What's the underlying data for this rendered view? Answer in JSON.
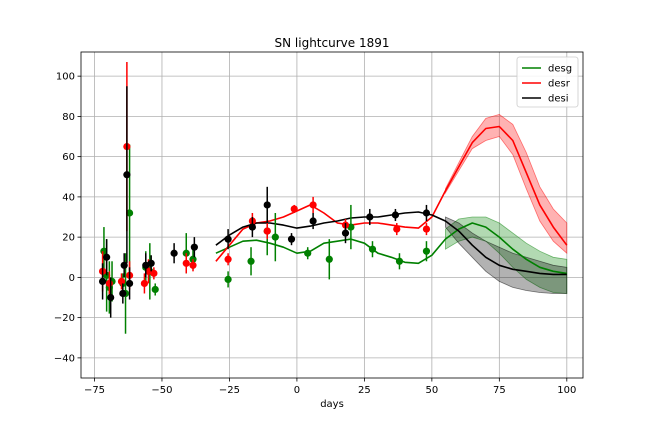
{
  "chart_data": {
    "type": "line",
    "title": "SN lightcurve 1891",
    "xlabel": "days",
    "ylabel": "",
    "xlim": [
      -80,
      106
    ],
    "ylim": [
      -50,
      112
    ],
    "xticks": [
      -75,
      -50,
      -25,
      0,
      25,
      50,
      75,
      100
    ],
    "yticks": [
      -40,
      -20,
      0,
      20,
      40,
      60,
      80,
      100
    ],
    "xtick_labels": [
      "−75",
      "−50",
      "−25",
      "0",
      "25",
      "50",
      "75",
      "100"
    ],
    "ytick_labels": [
      "−40",
      "−20",
      "0",
      "20",
      "40",
      "60",
      "80",
      "100"
    ],
    "grid": true,
    "legend_position": "top-right",
    "series": [
      {
        "name": "desg",
        "color": "#008000",
        "model_x": [
          -30,
          -25,
          -20,
          -15,
          -10,
          -5,
          0,
          5,
          10,
          15,
          20,
          25,
          30,
          35,
          40,
          45,
          50,
          55,
          60,
          65,
          70,
          75,
          80,
          85,
          90,
          95,
          100
        ],
        "model_y": [
          12,
          15,
          18,
          18.5,
          17,
          15,
          12,
          13,
          17,
          18,
          19,
          17,
          12,
          10,
          7.5,
          7,
          11,
          19,
          24,
          27,
          25,
          20,
          14,
          9,
          5,
          3,
          2
        ],
        "band_upper": [
          null,
          null,
          null,
          null,
          null,
          null,
          null,
          null,
          null,
          null,
          null,
          null,
          null,
          null,
          null,
          null,
          null,
          24,
          29,
          30,
          30,
          27,
          22,
          17,
          13,
          10,
          9
        ],
        "band_lower": [
          null,
          null,
          null,
          null,
          null,
          null,
          null,
          null,
          null,
          null,
          null,
          null,
          null,
          null,
          null,
          null,
          null,
          14,
          18,
          20,
          18,
          12,
          5,
          -1,
          -5,
          -7.5,
          -8
        ],
        "points": [
          {
            "x": -71.5,
            "y": 13,
            "err": 12
          },
          {
            "x": -70.5,
            "y": 1,
            "err": 18
          },
          {
            "x": -69.5,
            "y": -5,
            "err": 13
          },
          {
            "x": -68.5,
            "y": -2,
            "err": 10
          },
          {
            "x": -64.5,
            "y": -3,
            "err": 5
          },
          {
            "x": -63.5,
            "y": -8,
            "err": 20
          },
          {
            "x": -62,
            "y": 32,
            "err": 34
          },
          {
            "x": -56,
            "y": 5,
            "err": 8
          },
          {
            "x": -54.5,
            "y": 3,
            "err": 14
          },
          {
            "x": -52.5,
            "y": -6,
            "err": 3
          },
          {
            "x": -41,
            "y": 12,
            "err": 10
          },
          {
            "x": -38.5,
            "y": 9,
            "err": 5
          },
          {
            "x": -25.5,
            "y": -1,
            "err": 4
          },
          {
            "x": -17,
            "y": 8,
            "err": 7
          },
          {
            "x": -11,
            "y": 23,
            "err": 12
          },
          {
            "x": -8,
            "y": 20,
            "err": 12
          },
          {
            "x": 4,
            "y": 12,
            "err": 3
          },
          {
            "x": 12,
            "y": 9,
            "err": 10
          },
          {
            "x": 20,
            "y": 25,
            "err": 11
          },
          {
            "x": 28,
            "y": 14,
            "err": 4
          },
          {
            "x": 38,
            "y": 8,
            "err": 4
          },
          {
            "x": 48,
            "y": 13,
            "err": 5
          }
        ]
      },
      {
        "name": "desr",
        "color": "#ff0000",
        "model_x": [
          -30,
          -25,
          -20,
          -15,
          -10,
          -5,
          0,
          5,
          10,
          15,
          20,
          25,
          30,
          35,
          40,
          45,
          50,
          55,
          60,
          65,
          70,
          75,
          80,
          85,
          90,
          95,
          100
        ],
        "model_y": [
          8,
          16,
          24,
          27,
          28,
          30,
          33,
          36,
          32,
          27,
          26,
          27,
          27,
          26,
          25,
          24.5,
          30,
          43,
          55,
          67,
          74,
          75,
          68,
          52,
          36,
          25,
          16
        ],
        "band_upper": [
          null,
          null,
          null,
          null,
          null,
          null,
          null,
          null,
          null,
          null,
          null,
          null,
          null,
          null,
          null,
          null,
          null,
          44,
          57,
          70,
          79,
          81,
          76,
          62,
          45,
          34,
          27
        ],
        "band_lower": [
          null,
          null,
          null,
          null,
          null,
          null,
          null,
          null,
          null,
          null,
          null,
          null,
          null,
          null,
          null,
          null,
          null,
          42,
          53,
          64,
          68,
          70,
          61,
          44,
          28,
          18,
          12
        ],
        "points": [
          {
            "x": -72,
            "y": 3,
            "err": 10
          },
          {
            "x": -69.5,
            "y": -3,
            "err": 6
          },
          {
            "x": -65,
            "y": -2,
            "err": 4
          },
          {
            "x": -63,
            "y": 65,
            "err": 42
          },
          {
            "x": -62,
            "y": 1,
            "err": 7
          },
          {
            "x": -56.5,
            "y": -3,
            "err": 5
          },
          {
            "x": -55,
            "y": 3,
            "err": 6
          },
          {
            "x": -53,
            "y": 2,
            "err": 3
          },
          {
            "x": -41,
            "y": 7,
            "err": 5
          },
          {
            "x": -38.5,
            "y": 6,
            "err": 3
          },
          {
            "x": -25.5,
            "y": 9,
            "err": 3
          },
          {
            "x": -16.5,
            "y": 28,
            "err": 4
          },
          {
            "x": -11,
            "y": 23,
            "err": 4
          },
          {
            "x": -1,
            "y": 34,
            "err": 2
          },
          {
            "x": 6,
            "y": 36,
            "err": 4
          },
          {
            "x": 18,
            "y": 26,
            "err": 3
          },
          {
            "x": 37,
            "y": 24,
            "err": 3
          },
          {
            "x": 48,
            "y": 24,
            "err": 3
          }
        ]
      },
      {
        "name": "desi",
        "color": "#000000",
        "model_x": [
          -30,
          -25,
          -20,
          -15,
          -10,
          -5,
          0,
          5,
          10,
          15,
          20,
          25,
          30,
          35,
          40,
          45,
          50,
          55,
          60,
          65,
          70,
          75,
          80,
          85,
          90,
          95,
          100
        ],
        "model_y": [
          16,
          21,
          25,
          27,
          27,
          26,
          24.5,
          25.5,
          27,
          28,
          29.5,
          30,
          30,
          31,
          32,
          32.5,
          31,
          28,
          23,
          16,
          10,
          6,
          4,
          3,
          2,
          1.5,
          1.5
        ],
        "band_upper": [
          null,
          null,
          null,
          null,
          null,
          null,
          null,
          null,
          null,
          null,
          null,
          null,
          null,
          null,
          null,
          null,
          null,
          30,
          27,
          22,
          18,
          15,
          12,
          10,
          8,
          6,
          5
        ],
        "band_lower": [
          null,
          null,
          null,
          null,
          null,
          null,
          null,
          null,
          null,
          null,
          null,
          null,
          null,
          null,
          null,
          null,
          null,
          25,
          17,
          10,
          3,
          -2,
          -5,
          -6.5,
          -7.5,
          -8,
          -8
        ],
        "points": [
          {
            "x": -72,
            "y": -2,
            "err": 9
          },
          {
            "x": -70.5,
            "y": 10,
            "err": 9
          },
          {
            "x": -69,
            "y": -10,
            "err": 10
          },
          {
            "x": -64,
            "y": 6,
            "err": 6
          },
          {
            "x": -63,
            "y": 51,
            "err": 44
          },
          {
            "x": -62,
            "y": -3,
            "err": 8
          },
          {
            "x": -64.5,
            "y": -8,
            "err": 5
          },
          {
            "x": -56,
            "y": 6,
            "err": 6
          },
          {
            "x": -54,
            "y": 7,
            "err": 4
          },
          {
            "x": -45.5,
            "y": 12,
            "err": 5
          },
          {
            "x": -38,
            "y": 15,
            "err": 5
          },
          {
            "x": -25.5,
            "y": 19,
            "err": 5
          },
          {
            "x": -16.5,
            "y": 25,
            "err": 5
          },
          {
            "x": -11,
            "y": 36,
            "err": 9
          },
          {
            "x": -2,
            "y": 19,
            "err": 3
          },
          {
            "x": 6,
            "y": 28,
            "err": 4
          },
          {
            "x": 18,
            "y": 22,
            "err": 5
          },
          {
            "x": 27,
            "y": 30,
            "err": 4
          },
          {
            "x": 36.5,
            "y": 31,
            "err": 3
          },
          {
            "x": 48,
            "y": 32,
            "err": 4
          }
        ]
      }
    ]
  }
}
